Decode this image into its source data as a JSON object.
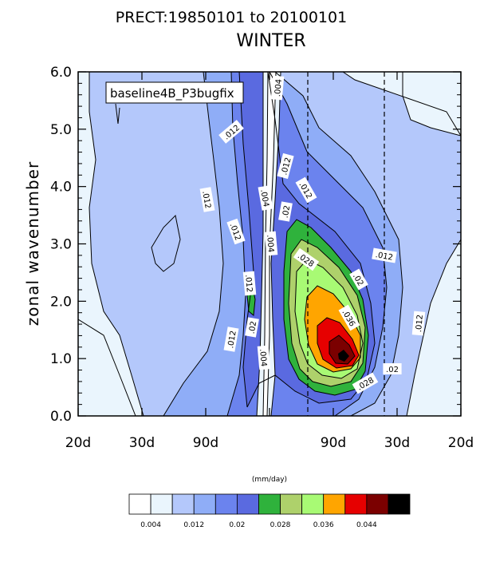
{
  "title": {
    "line1": "PRECT:19850101 to 20100101",
    "line2": "WINTER"
  },
  "legend_box": "baseline4B_P3bugfix",
  "units": "(mm/day)",
  "colors": {
    "levels_fill": [
      "#ffffff",
      "#eaf5fd",
      "#b4c8fb",
      "#8fadf7",
      "#6b83ee",
      "#5a6ae0",
      "#2fb23c",
      "#aed16b",
      "#a8fa74",
      "#ffa500",
      "#e60000",
      "#7b0000",
      "#000000"
    ]
  },
  "chart_data": {
    "type": "heatmap",
    "title": "PRECT:19850101 to 20100101",
    "subtitle": "WINTER",
    "xlabel": "",
    "ylabel": "zonal wavenumber",
    "ylim": [
      0.0,
      6.0
    ],
    "y_ticks": [
      "0.0",
      "1.0",
      "2.0",
      "3.0",
      "4.0",
      "5.0",
      "6.0"
    ],
    "x_ticks": [
      "20d",
      "30d",
      "90d",
      "",
      "90d",
      "30d",
      "20d"
    ],
    "dashed_verticals": 2,
    "contour_levels": [
      0.004,
      0.008,
      0.012,
      0.016,
      0.02,
      0.024,
      0.028,
      0.032,
      0.036,
      0.04,
      0.044,
      0.048
    ],
    "colorbar_labels": [
      "0.004",
      "0.012",
      "0.02",
      "0.028",
      "0.036",
      "0.044"
    ],
    "contour_labels": [
      ".012",
      ".012",
      ".004",
      ".012",
      ".012",
      ".012",
      ".004",
      ".004",
      ".02",
      ".028",
      ".012",
      ".02",
      ".012",
      ".02",
      ".004",
      ".036",
      ".012",
      ".02",
      ".012",
      ".028"
    ]
  }
}
